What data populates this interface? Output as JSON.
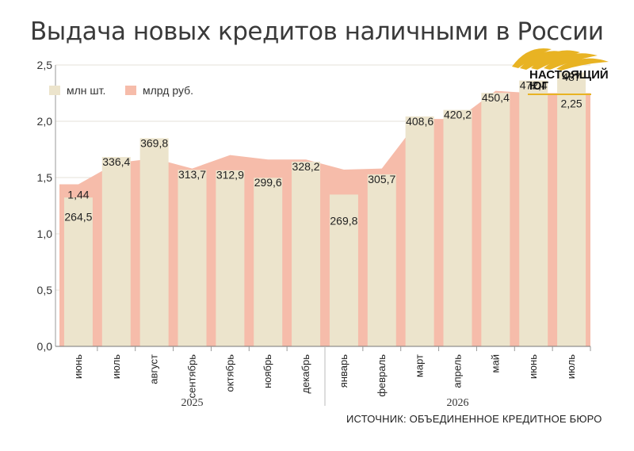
{
  "title": "Выдача новых кредитов наличными в России",
  "source": "ИСТОЧНИК: ОБЪЕДИНЕННОЕ КРЕДИТНОЕ БЮРО",
  "logo": {
    "line1": "НАСТОЯЩИЙ",
    "line2": "ЮГ"
  },
  "colors": {
    "count_bar": "#ece4cc",
    "amount_area": "#f6bcaa",
    "grid": "#e6e0d8",
    "text": "#222222"
  },
  "chart_data": {
    "type": "bar",
    "categories": [
      "июнь",
      "июль",
      "август",
      "сентябрь",
      "октябрь",
      "ноябрь",
      "декабрь",
      "январь",
      "февраль",
      "март",
      "апрель",
      "май",
      "июнь",
      "июль"
    ],
    "year_groups": [
      {
        "label": "2025",
        "start": 0,
        "end": 6
      },
      {
        "label": "2026",
        "start": 7,
        "end": 13
      }
    ],
    "ylim": [
      0,
      2.5
    ],
    "yticks": [
      "0,0",
      "0,5",
      "1,0",
      "1,5",
      "2,0",
      "2,5"
    ],
    "grid": true,
    "legend_position": "top-left",
    "series": [
      {
        "name": "млн шт.",
        "kind": "bar",
        "values": [
          264.5,
          336.4,
          369.8,
          313.7,
          312.9,
          299.6,
          328.2,
          269.8,
          305.7,
          408.6,
          420.2,
          450.4,
          472.4,
          487
        ],
        "labels": [
          "264,5",
          "336,4",
          "369,8",
          "313,7",
          "312,9",
          "299,6",
          "328,2",
          "269,8",
          "305,7",
          "408,6",
          "420,2",
          "450,4",
          "472,4",
          "487"
        ],
        "label_offsets": [
          -0.08,
          0.05,
          0.05,
          0.05,
          0.05,
          0.05,
          0.05,
          -0.14,
          0.05,
          0.05,
          0.05,
          0.05,
          0.05,
          0.05
        ]
      },
      {
        "name": "млрд руб.",
        "kind": "area",
        "values": [
          1.44,
          1.63,
          1.67,
          1.58,
          1.7,
          1.66,
          1.66,
          1.57,
          1.58,
          2.02,
          2.02,
          2.27,
          2.25,
          2.25
        ],
        "labels": [
          "1,44",
          "",
          "",
          "",
          "",
          "",
          "",
          "",
          "",
          "",
          "",
          "",
          "",
          "2,25"
        ]
      }
    ]
  }
}
